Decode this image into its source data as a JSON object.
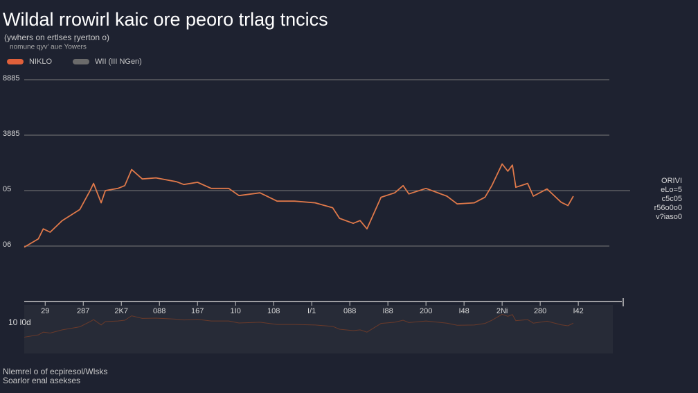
{
  "chart_data": {
    "type": "line",
    "title": "Wildal rrowirl kaic ore peoro trlag tncics",
    "subtitle": [
      "(ywhers on ertlses ŗyerton o)",
      "nomune  qyv'  aue  Yowers"
    ],
    "legend": [
      {
        "name": "NIKLO",
        "color": "#e0603a"
      },
      {
        "name": "WII (III NGen)",
        "color": "#6b6b6b"
      }
    ],
    "x": [
      -0.55,
      -0.18,
      -0.05,
      0.13,
      0.45,
      0.91,
      1.18,
      1.27,
      1.47,
      1.58,
      1.91,
      2.09,
      2.27,
      2.55,
      2.91,
      3.45,
      3.64,
      4.0,
      4.36,
      4.82,
      5.09,
      5.64,
      6.09,
      6.55,
      7.09,
      7.55,
      7.73,
      8.09,
      8.27,
      8.45,
      8.82,
      9.18,
      9.4,
      9.55,
      10.0,
      10.55,
      10.82,
      11.27,
      11.55,
      11.73,
      12.0,
      12.15,
      12.27,
      12.36,
      12.67,
      12.82,
      13.18,
      13.55,
      13.73,
      13.87
    ],
    "series": [
      {
        "name": "NIKLO",
        "color": "#e0794a",
        "values": [
          0.98,
          1.13,
          1.31,
          1.25,
          1.46,
          1.66,
          2.0,
          2.13,
          1.78,
          2.0,
          2.04,
          2.09,
          2.38,
          2.21,
          2.23,
          2.16,
          2.11,
          2.15,
          2.04,
          2.04,
          1.91,
          1.96,
          1.81,
          1.81,
          1.78,
          1.69,
          1.5,
          1.41,
          1.46,
          1.31,
          1.88,
          1.96,
          2.09,
          1.94,
          2.04,
          1.9,
          1.76,
          1.78,
          1.88,
          2.09,
          2.48,
          2.35,
          2.46,
          2.06,
          2.13,
          1.9,
          2.03,
          1.79,
          1.73,
          1.9
        ]
      }
    ],
    "xlim": [
      -0.55,
      15.18
    ],
    "xticks": [
      {
        "value": 0,
        "label": "29"
      },
      {
        "value": 1,
        "label": "287"
      },
      {
        "value": 2,
        "label": "2K7"
      },
      {
        "value": 3,
        "label": "088"
      },
      {
        "value": 4,
        "label": "167"
      },
      {
        "value": 5,
        "label": "1I0"
      },
      {
        "value": 6,
        "label": "108"
      },
      {
        "value": 7,
        "label": "I/1"
      },
      {
        "value": 8,
        "label": "088"
      },
      {
        "value": 9,
        "label": "I88"
      },
      {
        "value": 10,
        "label": "200"
      },
      {
        "value": 11,
        "label": "I48"
      },
      {
        "value": 12,
        "label": "2Ni"
      },
      {
        "value": 13,
        "label": "280"
      },
      {
        "value": 14,
        "label": "I42"
      }
    ],
    "ylim": [
      0,
      4
    ],
    "yticks": [
      {
        "value": 1,
        "label": "06"
      },
      {
        "value": 2,
        "label": "05"
      },
      {
        "value": 3,
        "label": "3885"
      },
      {
        "value": 4,
        "label": "8885"
      }
    ],
    "grid": true,
    "annotation": [
      "ORIVI",
      "eLo=5",
      "c5c05",
      "r56o0o0",
      "v?iaso0"
    ],
    "navigator_label": "10 l0d",
    "footnote": [
      "Nlemrel o of ecpiresol/Wlsks",
      "Soarlor enal asekses"
    ]
  }
}
